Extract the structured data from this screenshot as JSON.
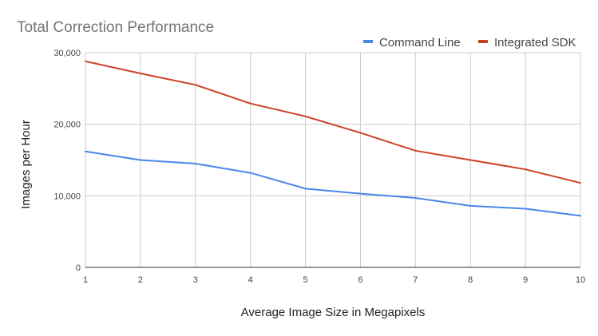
{
  "chart_data": {
    "type": "line",
    "title": "Total Correction Performance",
    "xlabel": "Average Image Size in Megapixels",
    "ylabel": "Images per Hour",
    "x": [
      1,
      2,
      3,
      4,
      5,
      6,
      7,
      8,
      9,
      10
    ],
    "x_tick_labels": [
      "1",
      "2",
      "3",
      "4",
      "5",
      "6",
      "7",
      "8",
      "9",
      "10"
    ],
    "xlim": [
      1,
      10
    ],
    "ylim": [
      0,
      30000
    ],
    "y_ticks": [
      0,
      10000,
      20000,
      30000
    ],
    "y_tick_labels": [
      "0",
      "10,000",
      "20,000",
      "30,000"
    ],
    "grid": true,
    "legend_position": "top-right",
    "series": [
      {
        "name": "Command Line",
        "color": "#4a86e8",
        "values": [
          16200,
          15000,
          14500,
          13200,
          11000,
          10300,
          9700,
          8600,
          8200,
          7200
        ]
      },
      {
        "name": "Integrated SDK",
        "color": "#cc4125",
        "values": [
          28800,
          27100,
          25500,
          22900,
          21100,
          18800,
          16300,
          15000,
          13700,
          11800
        ]
      }
    ]
  }
}
